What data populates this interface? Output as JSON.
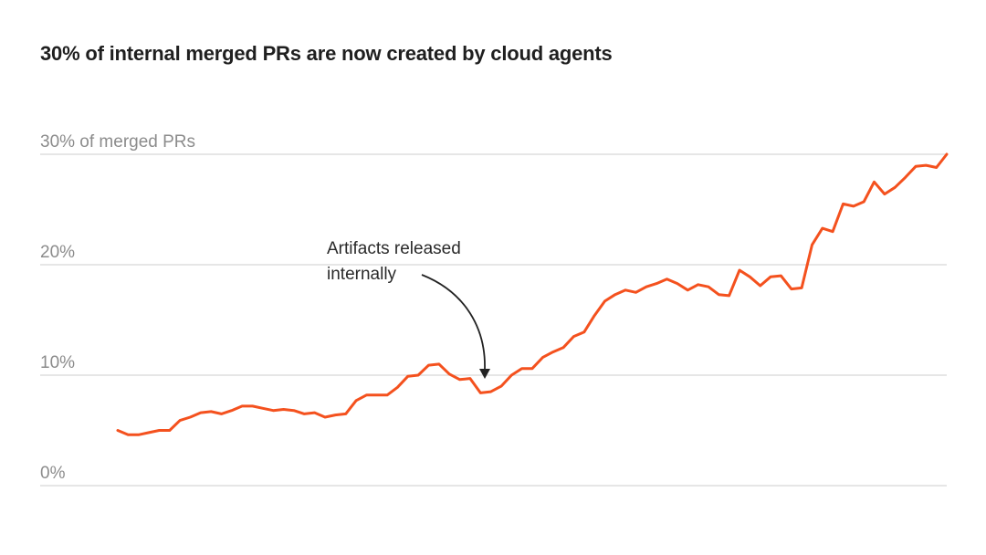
{
  "chart_data": {
    "type": "line",
    "title": "30% of internal merged PRs are now created by cloud agents",
    "xlabel": "",
    "ylabel": "",
    "ylim": [
      0,
      30
    ],
    "grid": true,
    "y_ticks": [
      {
        "value": 0,
        "label": "0%"
      },
      {
        "value": 10,
        "label": "10%"
      },
      {
        "value": 20,
        "label": "20%"
      },
      {
        "value": 30,
        "label": "30% of merged PRs"
      }
    ],
    "line_color": "#f4511e",
    "series": [
      {
        "values": [
          5.0,
          4.6,
          4.6,
          4.8,
          5.0,
          5.0,
          5.9,
          6.2,
          6.6,
          6.7,
          6.5,
          6.8,
          7.2,
          7.2,
          7.0,
          6.8,
          6.9,
          6.8,
          6.5,
          6.6,
          6.2,
          6.4,
          6.5,
          7.7,
          8.2,
          8.2,
          8.2,
          8.9,
          9.9,
          10.0,
          10.9,
          11.0,
          10.1,
          9.6,
          9.7,
          8.4,
          8.5,
          9.0,
          10.0,
          10.6,
          10.6,
          11.6,
          12.1,
          12.5,
          13.5,
          13.9,
          15.4,
          16.7,
          17.3,
          17.7,
          17.5,
          18.0,
          18.3,
          18.7,
          18.3,
          17.7,
          18.2,
          18.0,
          17.3,
          17.2,
          19.5,
          18.9,
          18.1,
          18.9,
          19.0,
          17.8,
          17.9,
          21.8,
          23.3,
          23.0,
          25.5,
          25.3,
          25.7,
          27.5,
          26.4,
          27.0,
          27.9,
          28.9,
          29.0,
          28.8,
          30.0
        ]
      }
    ],
    "annotations": [
      {
        "lines": [
          "Artifacts released",
          "internally"
        ],
        "point_index": 35
      }
    ]
  }
}
